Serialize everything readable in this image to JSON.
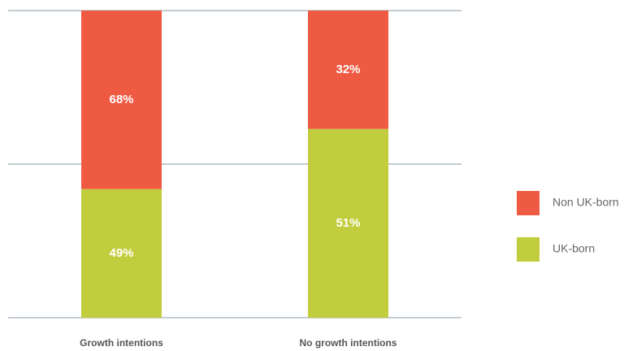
{
  "chart_data": {
    "type": "bar",
    "stacked": "percent",
    "categories": [
      "Growth intentions",
      "No growth intentions"
    ],
    "series": [
      {
        "name": "UK-born",
        "color": "#c2cd3d",
        "values": [
          49,
          51
        ],
        "value_labels": [
          "49%",
          "51%"
        ]
      },
      {
        "name": "Non UK-born",
        "color": "#ef5a42",
        "values": [
          68,
          32
        ],
        "value_labels": [
          "68%",
          "32%"
        ]
      }
    ],
    "legend": "right"
  }
}
